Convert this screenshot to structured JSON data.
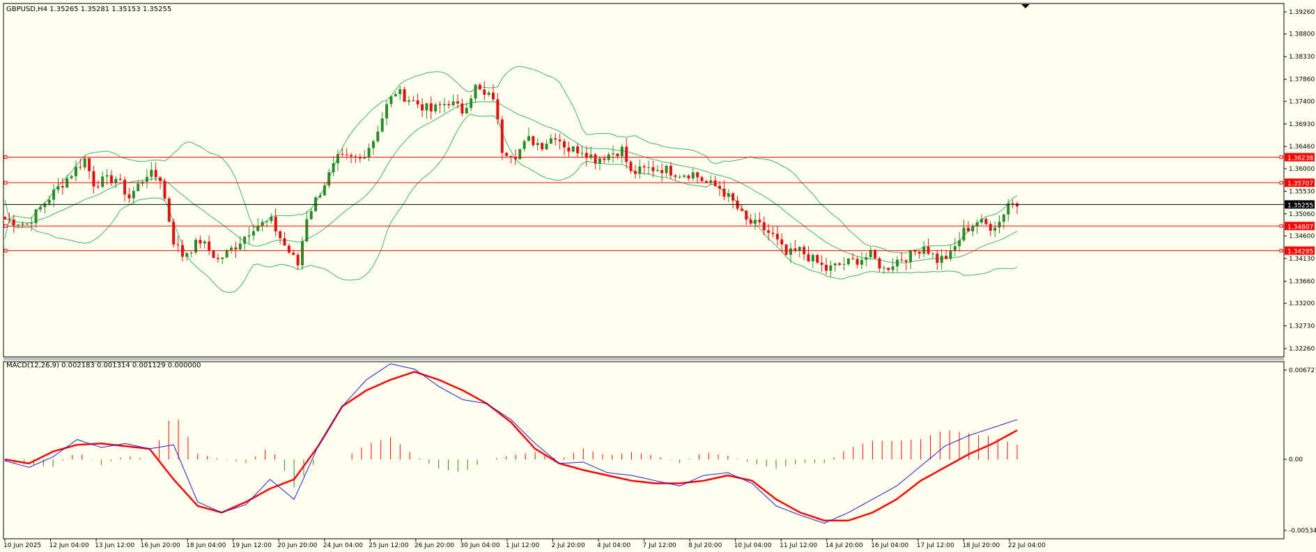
{
  "price_panel": {
    "header": "GBPUSD,H4  1.35265 1.35281 1.35153 1.35255"
  },
  "macd_panel": {
    "header": "MACD(12,26,9) 0.002183 0.001314 0.001129 0.000000"
  },
  "colors": {
    "background": "#fffff0",
    "bull_candle": "#2a8a2a",
    "bear_candle": "#e01010",
    "bollinger": "#3cb371",
    "level_line": "#ff0000",
    "current_price_line": "#000000",
    "macd_line": "#1e1ed8",
    "signal_line": "#ff0000",
    "hist_positive": "#ff0000",
    "hist_negative": "#2a8a2a"
  },
  "chart_data": [
    {
      "type": "candlestick",
      "symbol": "GBPUSD",
      "timeframe": "H4",
      "title": "GBPUSD,H4",
      "ohlc_last": {
        "open": 1.35265,
        "high": 1.35281,
        "low": 1.35153,
        "close": 1.35255
      },
      "ylim": [
        1.3226,
        1.3926
      ],
      "y_ticks": [
        "1.39260",
        "1.38800",
        "1.38330",
        "1.37860",
        "1.37400",
        "1.36930",
        "1.36460",
        "1.36000",
        "1.35530",
        "1.35060",
        "1.34600",
        "1.34130",
        "1.33660",
        "1.33200",
        "1.32730",
        "1.32260"
      ],
      "x_tick_labels": [
        "10 Jun 2025",
        "12 Jun 04:00",
        "13 Jun 12:00",
        "16 Jun 20:00",
        "18 Jun 04:00",
        "19 Jun 12:00",
        "20 Jun 20:00",
        "24 Jun 04:00",
        "25 Jun 12:00",
        "26 Jun 20:00",
        "30 Jun 04:00",
        "1 Jul 12:00",
        "2 Jul 20:00",
        "4 Jul 04:00",
        "7 Jul 12:00",
        "8 Jul 20:00",
        "10 Jul 04:00",
        "11 Jul 12:00",
        "14 Jul 20:00",
        "16 Jul 04:00",
        "17 Jul 12:00",
        "18 Jul 20:00",
        "22 Jul 04:00"
      ],
      "horizontal_levels": [
        {
          "label": "1.36238",
          "value": 1.36238,
          "color": "#ff0000"
        },
        {
          "label": "1.35707",
          "value": 1.35707,
          "color": "#ff0000"
        },
        {
          "label": "1.34807",
          "value": 1.34807,
          "color": "#ff0000"
        },
        {
          "label": "1.34295",
          "value": 1.34295,
          "color": "#ff0000"
        }
      ],
      "current_price": {
        "label": "1.35255",
        "value": 1.35255
      },
      "indicators": [
        "Bollinger Bands"
      ],
      "close_path": [
        [
          0,
          1.3495
        ],
        [
          5,
          1.3485
        ],
        [
          10,
          1.354
        ],
        [
          15,
          1.359
        ],
        [
          18,
          1.362
        ],
        [
          20,
          1.357
        ],
        [
          25,
          1.358
        ],
        [
          28,
          1.354
        ],
        [
          32,
          1.359
        ],
        [
          35,
          1.358
        ],
        [
          38,
          1.345
        ],
        [
          40,
          1.342
        ],
        [
          44,
          1.345
        ],
        [
          48,
          1.341
        ],
        [
          52,
          1.344
        ],
        [
          56,
          1.348
        ],
        [
          60,
          1.349
        ],
        [
          63,
          1.344
        ],
        [
          66,
          1.34
        ],
        [
          68,
          1.35
        ],
        [
          72,
          1.357
        ],
        [
          75,
          1.362
        ],
        [
          80,
          1.362
        ],
        [
          83,
          1.366
        ],
        [
          86,
          1.373
        ],
        [
          88,
          1.376
        ],
        [
          92,
          1.374
        ],
        [
          96,
          1.372
        ],
        [
          100,
          1.374
        ],
        [
          103,
          1.372
        ],
        [
          106,
          1.377
        ],
        [
          108,
          1.375
        ],
        [
          110,
          1.375
        ],
        [
          112,
          1.364
        ],
        [
          115,
          1.363
        ],
        [
          118,
          1.366
        ],
        [
          121,
          1.365
        ],
        [
          124,
          1.367
        ],
        [
          127,
          1.364
        ],
        [
          130,
          1.364
        ],
        [
          133,
          1.362
        ],
        [
          136,
          1.363
        ],
        [
          139,
          1.364
        ],
        [
          141,
          1.359
        ],
        [
          145,
          1.36
        ],
        [
          148,
          1.36
        ],
        [
          152,
          1.359
        ],
        [
          155,
          1.359
        ],
        [
          158,
          1.357
        ],
        [
          161,
          1.356
        ],
        [
          164,
          1.353
        ],
        [
          167,
          1.349
        ],
        [
          170,
          1.348
        ],
        [
          173,
          1.346
        ],
        [
          176,
          1.342
        ],
        [
          179,
          1.343
        ],
        [
          182,
          1.341
        ],
        [
          185,
          1.339
        ],
        [
          188,
          1.34
        ],
        [
          192,
          1.341
        ],
        [
          195,
          1.342
        ],
        [
          198,
          1.339
        ],
        [
          201,
          1.341
        ],
        [
          204,
          1.342
        ],
        [
          207,
          1.344
        ],
        [
          210,
          1.341
        ],
        [
          213,
          1.342
        ],
        [
          216,
          1.347
        ],
        [
          219,
          1.349
        ],
        [
          222,
          1.348
        ],
        [
          224,
          1.349
        ],
        [
          226,
          1.353
        ],
        [
          228,
          1.3525
        ]
      ]
    },
    {
      "type": "line",
      "title": "MACD(12,26,9)",
      "values_shown": {
        "macd": 0.002183,
        "signal": 0.001314,
        "histogram": 0.001129,
        "extra": 0.0
      },
      "ylim": [
        -0.005342,
        0.006727
      ],
      "y_ticks": [
        "0.006727",
        "0.00",
        "-0.005342"
      ],
      "series": [
        {
          "name": "MACD",
          "points": [
            [
              0,
              -0.0001
            ],
            [
              5,
              -0.0006
            ],
            [
              10,
              0.0002
            ],
            [
              15,
              0.0015
            ],
            [
              20,
              0.0009
            ],
            [
              25,
              0.0012
            ],
            [
              30,
              0.0008
            ],
            [
              35,
              0.0011
            ],
            [
              40,
              -0.0032
            ],
            [
              45,
              -0.004
            ],
            [
              50,
              -0.0034
            ],
            [
              55,
              -0.0015
            ],
            [
              60,
              -0.003
            ],
            [
              65,
              0.001
            ],
            [
              70,
              0.004
            ],
            [
              75,
              0.006
            ],
            [
              80,
              0.0072
            ],
            [
              85,
              0.0068
            ],
            [
              90,
              0.0055
            ],
            [
              95,
              0.0045
            ],
            [
              100,
              0.0042
            ],
            [
              105,
              0.003
            ],
            [
              110,
              0.0012
            ],
            [
              115,
              -0.0003
            ],
            [
              120,
              -0.0002
            ],
            [
              125,
              -0.001
            ],
            [
              130,
              -0.0012
            ],
            [
              135,
              -0.0016
            ],
            [
              140,
              -0.002
            ],
            [
              145,
              -0.0012
            ],
            [
              150,
              -0.001
            ],
            [
              155,
              -0.0018
            ],
            [
              160,
              -0.0035
            ],
            [
              165,
              -0.0042
            ],
            [
              170,
              -0.0048
            ],
            [
              175,
              -0.004
            ],
            [
              180,
              -0.003
            ],
            [
              185,
              -0.002
            ],
            [
              190,
              -0.0005
            ],
            [
              195,
              0.001
            ],
            [
              200,
              0.0018
            ],
            [
              205,
              0.0024
            ],
            [
              210,
              0.003
            ]
          ]
        },
        {
          "name": "Signal",
          "points": [
            [
              0,
              0.0
            ],
            [
              5,
              -0.0003
            ],
            [
              10,
              0.0006
            ],
            [
              15,
              0.0011
            ],
            [
              20,
              0.0012
            ],
            [
              25,
              0.001
            ],
            [
              30,
              0.0008
            ],
            [
              35,
              -0.0015
            ],
            [
              40,
              -0.0035
            ],
            [
              45,
              -0.004
            ],
            [
              50,
              -0.0032
            ],
            [
              55,
              -0.0022
            ],
            [
              60,
              -0.0015
            ],
            [
              65,
              0.001
            ],
            [
              70,
              0.004
            ],
            [
              75,
              0.0052
            ],
            [
              80,
              0.006
            ],
            [
              85,
              0.0066
            ],
            [
              90,
              0.006
            ],
            [
              95,
              0.0052
            ],
            [
              100,
              0.0042
            ],
            [
              105,
              0.0028
            ],
            [
              110,
              0.0008
            ],
            [
              115,
              -0.0003
            ],
            [
              120,
              -0.0008
            ],
            [
              125,
              -0.0012
            ],
            [
              130,
              -0.0016
            ],
            [
              135,
              -0.0018
            ],
            [
              140,
              -0.0018
            ],
            [
              145,
              -0.0016
            ],
            [
              150,
              -0.0012
            ],
            [
              155,
              -0.0016
            ],
            [
              160,
              -0.003
            ],
            [
              165,
              -0.004
            ],
            [
              170,
              -0.0046
            ],
            [
              175,
              -0.0046
            ],
            [
              180,
              -0.004
            ],
            [
              185,
              -0.003
            ],
            [
              190,
              -0.0016
            ],
            [
              195,
              -0.0006
            ],
            [
              200,
              0.0004
            ],
            [
              205,
              0.0012
            ],
            [
              210,
              0.0022
            ]
          ]
        }
      ]
    }
  ]
}
